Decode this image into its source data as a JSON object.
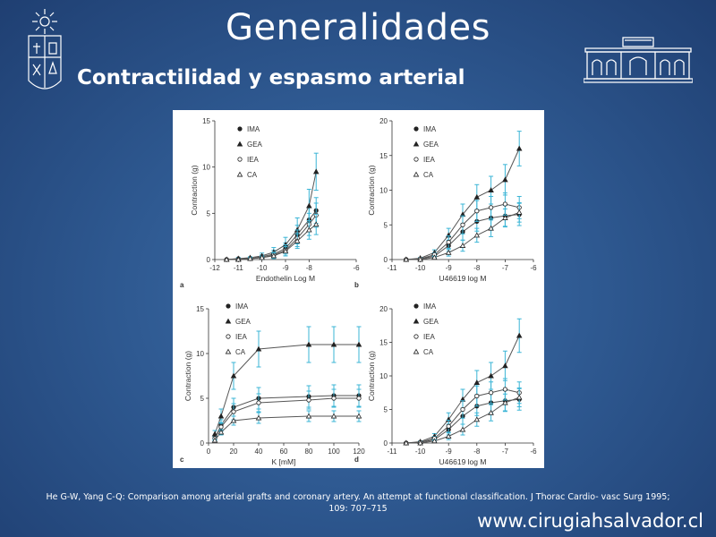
{
  "slide": {
    "title": "Generalidades",
    "subtitle": "Contractilidad y espasmo arterial",
    "citation_line1": "He G-W, Yang C-Q: Comparison among arterial grafts and coronary artery. An attempt at functional classification. J Thorac Cardio- vasc Surg 1995;",
    "citation_line2": "109: 707–715",
    "website": "www.cirugiahsalvador.cl"
  },
  "colors": {
    "background": "#2f5a92",
    "errorbar": "#3bb5d6",
    "curve": "#555555",
    "text": "#ffffff"
  },
  "series": [
    "IMA",
    "GEA",
    "IEA",
    "CA"
  ],
  "panels": [
    {
      "letter": "a",
      "xlabel": "Endothelin Log M",
      "ylabel": "Contraction (g)",
      "xticks": [
        "-12",
        "-11",
        "-10",
        "-9",
        "-8",
        "-6"
      ],
      "yticks": [
        "0",
        "5",
        "10",
        "15"
      ]
    },
    {
      "letter": "b",
      "xlabel": "U46619 log M",
      "ylabel": "Contraction (g)",
      "xticks": [
        "-11",
        "-10",
        "-9",
        "-8",
        "-7",
        "-6"
      ],
      "yticks": [
        "0",
        "5",
        "10",
        "15",
        "20"
      ]
    },
    {
      "letter": "c",
      "xlabel": "K [mM]",
      "ylabel": "Contraction (g)",
      "xticks": [
        "0",
        "20",
        "40",
        "60",
        "80",
        "100",
        "120"
      ],
      "yticks": [
        "0",
        "5",
        "10",
        "15"
      ]
    },
    {
      "letter": "d",
      "xlabel": "U46619 log M",
      "ylabel": "Contraction (g)",
      "xticks": [
        "-11",
        "-10",
        "-9",
        "-8",
        "-7",
        "-6"
      ],
      "yticks": [
        "0",
        "5",
        "10",
        "15",
        "20"
      ]
    }
  ],
  "chart_data": [
    {
      "type": "line",
      "panel": "a",
      "xlabel": "Endothelin Log M",
      "ylabel": "Contraction (g)",
      "xlim": [
        -12,
        -6
      ],
      "ylim": [
        0,
        15
      ],
      "x": [
        -11.5,
        -11,
        -10.5,
        -10,
        -9.5,
        -9,
        -8.5,
        -8,
        -7.7
      ],
      "series": [
        {
          "name": "IMA",
          "marker": "circle-filled",
          "values": [
            0,
            0.1,
            0.1,
            0.3,
            0.6,
            1.2,
            2.7,
            4.3,
            5.3
          ],
          "err": [
            0,
            0.1,
            0.1,
            0.2,
            0.4,
            0.6,
            1.0,
            1.3,
            1.4
          ]
        },
        {
          "name": "GEA",
          "marker": "triangle-filled",
          "values": [
            0,
            0.1,
            0.2,
            0.4,
            0.8,
            1.6,
            3.2,
            5.8,
            9.5
          ],
          "err": [
            0,
            0.1,
            0.1,
            0.3,
            0.5,
            0.8,
            1.3,
            1.8,
            2.0
          ]
        },
        {
          "name": "IEA",
          "marker": "circle-open",
          "values": [
            0,
            0,
            0.1,
            0.2,
            0.5,
            1.0,
            2.3,
            3.8,
            4.8
          ],
          "err": [
            0,
            0,
            0.1,
            0.2,
            0.3,
            0.6,
            0.9,
            1.2,
            1.3
          ]
        },
        {
          "name": "CA",
          "marker": "triangle-open",
          "values": [
            0,
            0,
            0.1,
            0.2,
            0.4,
            0.9,
            2.0,
            3.2,
            3.8
          ],
          "err": [
            0,
            0,
            0.1,
            0.1,
            0.3,
            0.5,
            0.8,
            1.0,
            1.1
          ]
        }
      ]
    },
    {
      "type": "line",
      "panel": "b",
      "xlabel": "U46619 log M",
      "ylabel": "Contraction (g)",
      "xlim": [
        -11,
        -6
      ],
      "ylim": [
        0,
        20
      ],
      "x": [
        -10.5,
        -10,
        -9.5,
        -9,
        -8.5,
        -8,
        -7.5,
        -7,
        -6.5
      ],
      "series": [
        {
          "name": "IMA",
          "marker": "circle-filled",
          "values": [
            0,
            0.1,
            0.5,
            2.0,
            4.0,
            5.5,
            6.0,
            6.3,
            6.5
          ],
          "err": [
            0,
            0.1,
            0.3,
            0.8,
            1.2,
            1.4,
            1.5,
            1.5,
            1.6
          ]
        },
        {
          "name": "GEA",
          "marker": "triangle-filled",
          "values": [
            0,
            0.2,
            1.0,
            3.5,
            6.5,
            9.0,
            10.0,
            11.5,
            16.0
          ],
          "err": [
            0,
            0.1,
            0.4,
            1.0,
            1.5,
            1.8,
            2.0,
            2.2,
            2.5
          ]
        },
        {
          "name": "IEA",
          "marker": "circle-open",
          "values": [
            0,
            0.1,
            0.7,
            2.5,
            5.0,
            7.0,
            7.5,
            8.0,
            7.5
          ],
          "err": [
            0,
            0.1,
            0.3,
            0.9,
            1.3,
            1.5,
            1.6,
            1.6,
            1.6
          ]
        },
        {
          "name": "CA",
          "marker": "triangle-open",
          "values": [
            0,
            0,
            0.3,
            1.0,
            2.0,
            3.5,
            4.5,
            6.0,
            6.8
          ],
          "err": [
            0,
            0,
            0.2,
            0.5,
            0.8,
            1.0,
            1.2,
            1.3,
            1.4
          ]
        }
      ]
    },
    {
      "type": "line",
      "panel": "c",
      "xlabel": "K [mM]",
      "ylabel": "Contraction (g)",
      "xlim": [
        0,
        120
      ],
      "ylim": [
        0,
        15
      ],
      "x": [
        5,
        10,
        20,
        40,
        80,
        100,
        120
      ],
      "series": [
        {
          "name": "IMA",
          "marker": "circle-filled",
          "values": [
            0.5,
            2.0,
            4.0,
            5.0,
            5.2,
            5.3,
            5.3
          ],
          "err": [
            0.2,
            0.6,
            1.0,
            1.2,
            1.2,
            1.2,
            1.2
          ]
        },
        {
          "name": "GEA",
          "marker": "triangle-filled",
          "values": [
            1.0,
            3.0,
            7.5,
            10.5,
            11.0,
            11.0,
            11.0
          ],
          "err": [
            0.4,
            0.8,
            1.5,
            2.0,
            2.0,
            2.0,
            2.0
          ]
        },
        {
          "name": "IEA",
          "marker": "circle-open",
          "values": [
            0.5,
            1.8,
            3.5,
            4.5,
            4.8,
            5.0,
            5.0
          ],
          "err": [
            0.2,
            0.5,
            0.9,
            1.0,
            1.0,
            1.0,
            1.0
          ]
        },
        {
          "name": "CA",
          "marker": "triangle-open",
          "values": [
            0.3,
            1.2,
            2.5,
            2.8,
            3.0,
            3.0,
            3.0
          ],
          "err": [
            0.1,
            0.3,
            0.5,
            0.6,
            0.6,
            0.6,
            0.6
          ]
        }
      ]
    },
    {
      "type": "line",
      "panel": "d",
      "xlabel": "U46619 log M",
      "ylabel": "Contraction (g)",
      "xlim": [
        -11,
        -6
      ],
      "ylim": [
        0,
        20
      ],
      "x": [
        -10.5,
        -10,
        -9.5,
        -9,
        -8.5,
        -8,
        -7.5,
        -7,
        -6.5
      ],
      "series": [
        {
          "name": "IMA",
          "marker": "circle-filled",
          "values": [
            0,
            0.1,
            0.5,
            2.0,
            4.0,
            5.5,
            6.0,
            6.3,
            6.5
          ],
          "err": [
            0,
            0.1,
            0.3,
            0.8,
            1.2,
            1.4,
            1.5,
            1.5,
            1.6
          ]
        },
        {
          "name": "GEA",
          "marker": "triangle-filled",
          "values": [
            0,
            0.2,
            1.0,
            3.5,
            6.5,
            9.0,
            10.0,
            11.5,
            16.0
          ],
          "err": [
            0,
            0.1,
            0.4,
            1.0,
            1.5,
            1.8,
            2.0,
            2.2,
            2.5
          ]
        },
        {
          "name": "IEA",
          "marker": "circle-open",
          "values": [
            0,
            0.1,
            0.7,
            2.5,
            5.0,
            7.0,
            7.5,
            8.0,
            7.5
          ],
          "err": [
            0,
            0.1,
            0.3,
            0.9,
            1.3,
            1.5,
            1.6,
            1.6,
            1.6
          ]
        },
        {
          "name": "CA",
          "marker": "triangle-open",
          "values": [
            0,
            0,
            0.3,
            1.0,
            2.0,
            3.5,
            4.5,
            6.0,
            6.8
          ],
          "err": [
            0,
            0,
            0.2,
            0.5,
            0.8,
            1.0,
            1.2,
            1.3,
            1.4
          ]
        }
      ]
    }
  ]
}
